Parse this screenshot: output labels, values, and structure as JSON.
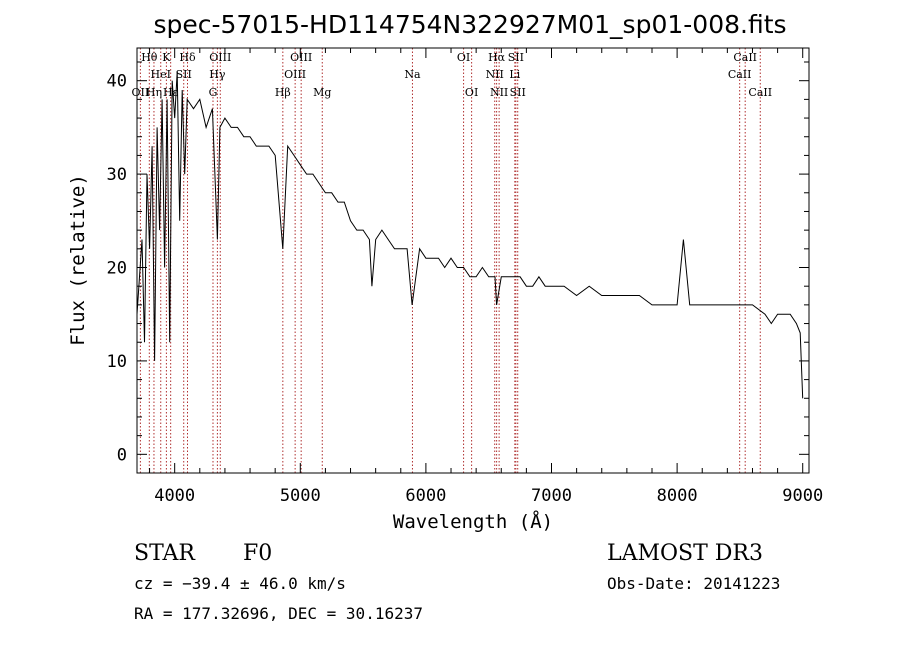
{
  "chart_data": {
    "type": "line",
    "title": "spec-57015-HD114754N322927M01_sp01-008.fits",
    "xlabel": "Wavelength (Å)",
    "ylabel": "Flux (relative)",
    "xlim": [
      3700,
      9050
    ],
    "ylim": [
      -2,
      43.5
    ],
    "x_ticks": [
      4000,
      5000,
      6000,
      7000,
      8000,
      9000
    ],
    "y_ticks": [
      0,
      10,
      20,
      30,
      40
    ],
    "grid": false,
    "line_color": "#000000",
    "marker_color": "#b03030",
    "series": [
      {
        "x": [
          3700,
          3720,
          3740,
          3760,
          3780,
          3800,
          3820,
          3840,
          3860,
          3880,
          3900,
          3920,
          3940,
          3960,
          3980,
          4000,
          4020,
          4040,
          4060,
          4080,
          4100,
          4150,
          4200,
          4250,
          4300,
          4340,
          4360,
          4400,
          4450,
          4500,
          4550,
          4600,
          4650,
          4700,
          4750,
          4800,
          4861,
          4900,
          4950,
          5000,
          5050,
          5100,
          5150,
          5200,
          5250,
          5300,
          5350,
          5400,
          5450,
          5500,
          5550,
          5570,
          5600,
          5650,
          5700,
          5750,
          5800,
          5850,
          5890,
          5950,
          6000,
          6050,
          6100,
          6150,
          6200,
          6250,
          6300,
          6350,
          6400,
          6450,
          6500,
          6550,
          6563,
          6600,
          6650,
          6700,
          6750,
          6800,
          6850,
          6900,
          6950,
          7000,
          7100,
          7200,
          7300,
          7400,
          7500,
          7600,
          7700,
          7800,
          7900,
          8000,
          8050,
          8100,
          8200,
          8300,
          8400,
          8500,
          8600,
          8700,
          8750,
          8800,
          8850,
          8900,
          8950,
          8980,
          9000
        ],
        "y": [
          15,
          19,
          23,
          12,
          30,
          22,
          33,
          10,
          35,
          24,
          38,
          20,
          38,
          12,
          40,
          36,
          41,
          25,
          39,
          30,
          38,
          37,
          38,
          35,
          37,
          23,
          35,
          36,
          35,
          35,
          34,
          34,
          33,
          33,
          33,
          32,
          22,
          33,
          32,
          31,
          30,
          30,
          29,
          28,
          28,
          27,
          27,
          25,
          24,
          24,
          23,
          18,
          23,
          24,
          23,
          22,
          22,
          22,
          16,
          22,
          21,
          21,
          21,
          20,
          21,
          20,
          20,
          19,
          19,
          20,
          19,
          19,
          16,
          19,
          19,
          19,
          19,
          18,
          18,
          19,
          18,
          18,
          18,
          17,
          18,
          17,
          17,
          17,
          17,
          16,
          16,
          16,
          23,
          16,
          16,
          16,
          16,
          16,
          16,
          15,
          14,
          15,
          15,
          15,
          14,
          13,
          6
        ]
      }
    ],
    "line_markers": [
      {
        "wavelength": 3727,
        "label": "OII",
        "row": 3
      },
      {
        "wavelength": 3798,
        "label": "Hθ",
        "row": 1
      },
      {
        "wavelength": 3835,
        "label": "Hη",
        "row": 3
      },
      {
        "wavelength": 3889,
        "label": "HeI",
        "row": 2
      },
      {
        "wavelength": 3934,
        "label": "K",
        "row": 1
      },
      {
        "wavelength": 3968,
        "label": "Hε",
        "row": 3
      },
      {
        "wavelength": 4072,
        "label": "SII",
        "row": 2
      },
      {
        "wavelength": 4102,
        "label": "Hδ",
        "row": 1
      },
      {
        "wavelength": 4305,
        "label": "G",
        "row": 3
      },
      {
        "wavelength": 4340,
        "label": "Hγ",
        "row": 2
      },
      {
        "wavelength": 4363,
        "label": "OIII",
        "row": 1
      },
      {
        "wavelength": 4861,
        "label": "Hβ",
        "row": 3
      },
      {
        "wavelength": 4959,
        "label": "OIII",
        "row": 2
      },
      {
        "wavelength": 5007,
        "label": "OIII",
        "row": 1
      },
      {
        "wavelength": 5175,
        "label": "Mg",
        "row": 3
      },
      {
        "wavelength": 5893,
        "label": "Na",
        "row": 2
      },
      {
        "wavelength": 6300,
        "label": "OI",
        "row": 1
      },
      {
        "wavelength": 6364,
        "label": "OI",
        "row": 3
      },
      {
        "wavelength": 6548,
        "label": "NII",
        "row": 2
      },
      {
        "wavelength": 6563,
        "label": "Hα",
        "row": 1
      },
      {
        "wavelength": 6583,
        "label": "NII",
        "row": 3
      },
      {
        "wavelength": 6708,
        "label": "Li",
        "row": 2
      },
      {
        "wavelength": 6716,
        "label": "SII",
        "row": 1
      },
      {
        "wavelength": 6731,
        "label": "SII",
        "row": 3
      },
      {
        "wavelength": 8498,
        "label": "CaII",
        "row": 2
      },
      {
        "wavelength": 8542,
        "label": "CaII",
        "row": 1
      },
      {
        "wavelength": 8662,
        "label": "CaII",
        "row": 3
      }
    ]
  },
  "info": {
    "class": "STAR",
    "subclass": "F0",
    "survey": "LAMOST DR3",
    "cz": "cz = −39.4 ± 46.0 km/s",
    "obs_date": "Obs-Date: 20141223",
    "coords": "RA = 177.32696, DEC =  30.16237"
  }
}
